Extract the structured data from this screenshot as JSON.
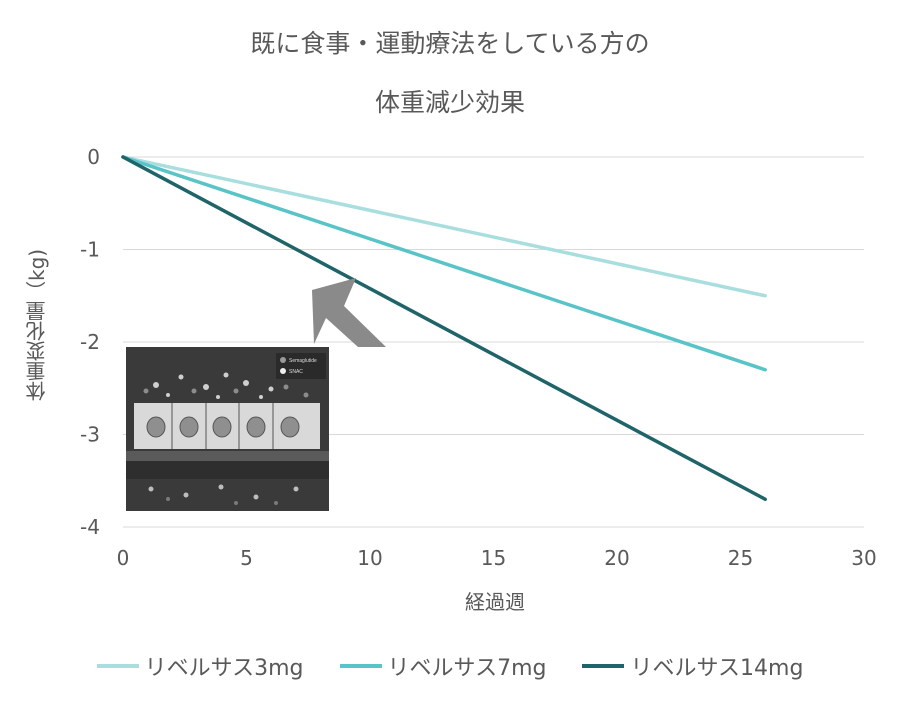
{
  "chart_data": {
    "type": "line",
    "title": "既に食事・運動療法をしている方の",
    "subtitle": "体重減少効果",
    "xlabel": "経過週",
    "ylabel": "体重変化量（kg)",
    "xlim": [
      0,
      30
    ],
    "ylim": [
      -4,
      0
    ],
    "xticks": [
      "0",
      "5",
      "10",
      "15",
      "20",
      "25",
      "30"
    ],
    "yticks": [
      "0",
      "-1",
      "-2",
      "-3",
      "-4"
    ],
    "grid": true,
    "legend_position": "bottom",
    "series": [
      {
        "name": "リベルサス3mg",
        "color": "#a8dede",
        "x": [
          0,
          26
        ],
        "y": [
          0,
          -1.5
        ]
      },
      {
        "name": "リベルサス7mg",
        "color": "#58c4c8",
        "x": [
          0,
          26
        ],
        "y": [
          0,
          -2.3
        ]
      },
      {
        "name": "リベルサス14mg",
        "color": "#1e6468",
        "x": [
          0,
          26
        ],
        "y": [
          0,
          -3.7
        ]
      }
    ]
  },
  "inset": {
    "legend": [
      "Semaglutide",
      "SNAC"
    ]
  },
  "icons": {
    "arrow": "down-right-arrow-icon"
  }
}
